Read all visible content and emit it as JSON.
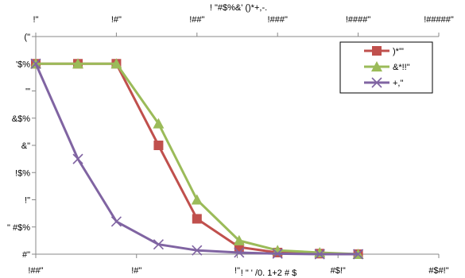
{
  "chart_data": {
    "type": "line",
    "top_axis": {
      "title": "! \"#$%&' ()*+,-.",
      "ticks": [
        "!\"",
        "!#\"",
        "!##\"",
        "!###\"",
        "!####\"",
        "!#####\""
      ],
      "scale": "log"
    },
    "x_axis": {
      "title": "! \" ' /0. 1+2 # $ ",
      "ticks": [
        "!##\"",
        "!#\"",
        "!\"",
        "#$!\"",
        "#$#!\""
      ],
      "scale": "log",
      "range": [
        100,
        0.001
      ]
    },
    "y_axis": {
      "ticks": [
        "#\"",
        "\" #$%",
        "!\"",
        "!$%",
        "&\"",
        "&$%",
        "'\"",
        "'$%",
        "(\""
      ],
      "range": [
        0,
        4
      ]
    },
    "series": [
      {
        "name": ")*'\"",
        "color": "#c0504d",
        "marker": "square",
        "points": [
          [
            100,
            3.5
          ],
          [
            30,
            3.5
          ],
          [
            10,
            3.5
          ],
          [
            3,
            2.0
          ],
          [
            1,
            0.65
          ],
          [
            0.3,
            0.13
          ],
          [
            0.1,
            0.03
          ],
          [
            0.03,
            0.01
          ],
          [
            0.01,
            0.0
          ]
        ]
      },
      {
        "name": "&*!!\"",
        "color": "#9bbb59",
        "marker": "triangle",
        "points": [
          [
            100,
            3.5
          ],
          [
            30,
            3.5
          ],
          [
            10,
            3.5
          ],
          [
            3,
            2.4
          ],
          [
            1,
            1.0
          ],
          [
            0.3,
            0.25
          ],
          [
            0.1,
            0.07
          ],
          [
            0.03,
            0.03
          ],
          [
            0.01,
            0.0
          ]
        ]
      },
      {
        "name": "+,\"",
        "color": "#8064a2",
        "marker": "x",
        "points": [
          [
            100,
            3.5
          ],
          [
            30,
            1.75
          ],
          [
            10,
            0.6
          ],
          [
            3,
            0.18
          ],
          [
            1,
            0.07
          ],
          [
            0.3,
            0.03
          ],
          [
            0.1,
            0.01
          ],
          [
            0.03,
            0.0
          ],
          [
            0.01,
            0.0
          ]
        ]
      }
    ],
    "legend_position": "top-right",
    "grid": false
  }
}
